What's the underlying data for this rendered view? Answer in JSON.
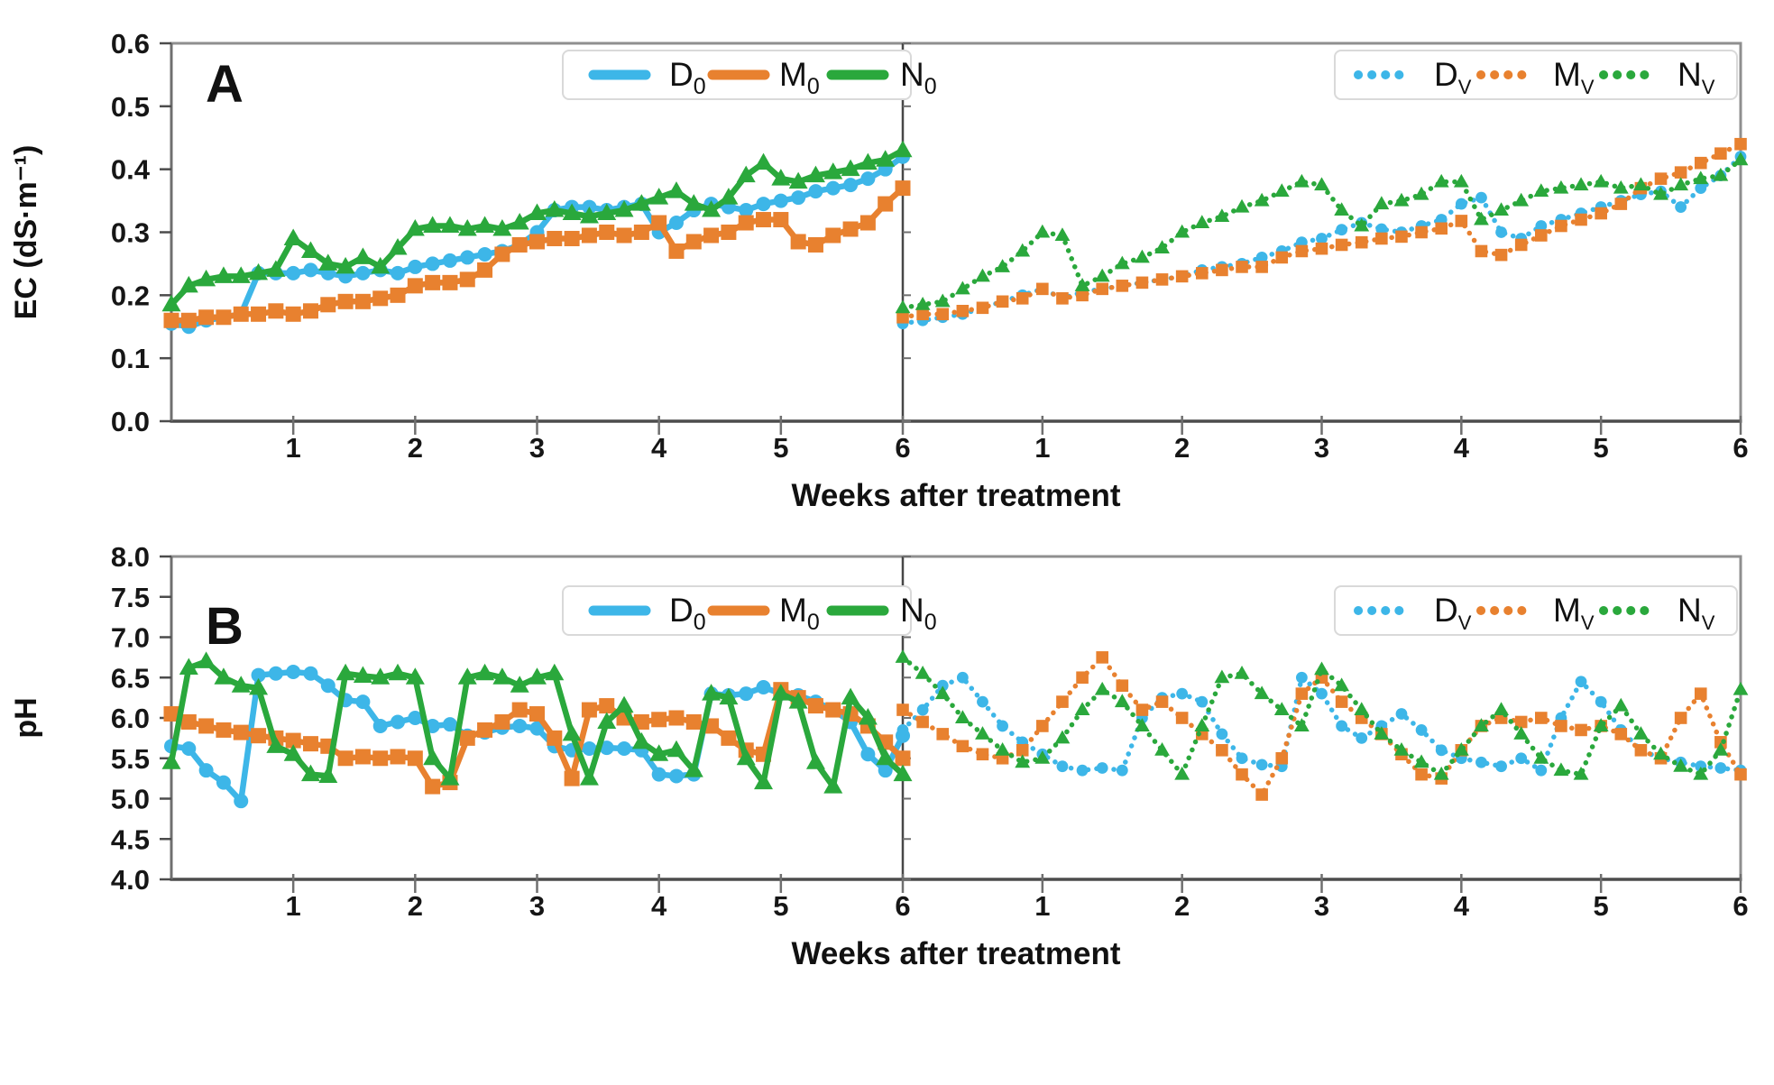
{
  "figure": {
    "background": "#ffffff",
    "xlabel": "Weeks after treatment",
    "colors": {
      "blue": "#3db6e8",
      "orange": "#e8812f",
      "green": "#2aa83c",
      "axis_dark": "#4c4c4c",
      "border_gray": "#8f8f8f",
      "text": "#161616",
      "legend_box": "#d9d9d9"
    }
  },
  "chart_data": [
    {
      "panel": "A",
      "type": "line",
      "ylabel": "EC (dS·m⁻¹)",
      "xlabel": "Weeks after treatment",
      "ylim": [
        0.0,
        0.6
      ],
      "ytick_labels": [
        "0.0",
        "0.1",
        "0.2",
        "0.3",
        "0.4",
        "0.5",
        "0.6"
      ],
      "x_range_weeks": [
        0,
        6
      ],
      "xtick_labels": [
        "1",
        "2",
        "3",
        "4",
        "5",
        "6"
      ],
      "grid": false,
      "legend_position": "top-right-inside",
      "subplots": [
        {
          "position": "left",
          "line_style": "solid",
          "series": [
            {
              "name": "D0",
              "label": "D",
              "label_sub": "0",
              "color": "#3db6e8",
              "marker": "circle",
              "values": [
                0.155,
                0.15,
                0.16,
                0.165,
                0.17,
                0.235,
                0.235,
                0.235,
                0.24,
                0.235,
                0.23,
                0.235,
                0.24,
                0.235,
                0.245,
                0.25,
                0.255,
                0.26,
                0.265,
                0.27,
                0.28,
                0.3,
                0.335,
                0.34,
                0.34,
                0.335,
                0.34,
                0.345,
                0.3,
                0.315,
                0.335,
                0.345,
                0.34,
                0.335,
                0.345,
                0.35,
                0.355,
                0.365,
                0.37,
                0.375,
                0.385,
                0.4,
                0.42
              ]
            },
            {
              "name": "M0",
              "label": "M",
              "label_sub": "0",
              "color": "#e8812f",
              "marker": "square",
              "values": [
                0.16,
                0.16,
                0.165,
                0.165,
                0.17,
                0.17,
                0.175,
                0.17,
                0.175,
                0.185,
                0.19,
                0.19,
                0.195,
                0.2,
                0.215,
                0.22,
                0.22,
                0.225,
                0.24,
                0.265,
                0.28,
                0.285,
                0.29,
                0.29,
                0.295,
                0.3,
                0.295,
                0.3,
                0.315,
                0.27,
                0.285,
                0.295,
                0.3,
                0.315,
                0.32,
                0.32,
                0.285,
                0.28,
                0.295,
                0.305,
                0.315,
                0.345,
                0.37
              ]
            },
            {
              "name": "N0",
              "label": "N",
              "label_sub": "0",
              "color": "#2aa83c",
              "marker": "triangle",
              "values": [
                0.185,
                0.215,
                0.225,
                0.23,
                0.23,
                0.235,
                0.24,
                0.29,
                0.27,
                0.25,
                0.245,
                0.26,
                0.245,
                0.275,
                0.305,
                0.31,
                0.31,
                0.305,
                0.31,
                0.305,
                0.315,
                0.33,
                0.335,
                0.33,
                0.325,
                0.33,
                0.335,
                0.345,
                0.355,
                0.365,
                0.345,
                0.335,
                0.355,
                0.39,
                0.41,
                0.385,
                0.38,
                0.39,
                0.395,
                0.4,
                0.41,
                0.415,
                0.43
              ]
            }
          ]
        },
        {
          "position": "right",
          "line_style": "dotted",
          "series": [
            {
              "name": "Dv",
              "label": "D",
              "label_sub": "V",
              "color": "#3db6e8",
              "marker": "circle",
              "values": [
                0.155,
                0.16,
                0.165,
                0.17,
                0.18,
                0.19,
                0.2,
                0.21,
                0.195,
                0.205,
                0.21,
                0.215,
                0.22,
                0.225,
                0.23,
                0.24,
                0.245,
                0.25,
                0.26,
                0.27,
                0.284,
                0.29,
                0.304,
                0.315,
                0.305,
                0.3,
                0.31,
                0.32,
                0.345,
                0.355,
                0.3,
                0.29,
                0.31,
                0.32,
                0.33,
                0.34,
                0.35,
                0.36,
                0.365,
                0.34,
                0.37,
                0.39,
                0.42
              ]
            },
            {
              "name": "Mv",
              "label": "M",
              "label_sub": "V",
              "color": "#e8812f",
              "marker": "square",
              "values": [
                0.165,
                0.17,
                0.17,
                0.175,
                0.18,
                0.19,
                0.195,
                0.21,
                0.195,
                0.2,
                0.21,
                0.215,
                0.22,
                0.225,
                0.23,
                0.235,
                0.24,
                0.245,
                0.245,
                0.26,
                0.27,
                0.274,
                0.28,
                0.284,
                0.29,
                0.293,
                0.3,
                0.306,
                0.318,
                0.27,
                0.264,
                0.28,
                0.295,
                0.31,
                0.32,
                0.33,
                0.345,
                0.37,
                0.385,
                0.395,
                0.41,
                0.425,
                0.44
              ]
            },
            {
              "name": "Nv",
              "label": "N",
              "label_sub": "V",
              "color": "#2aa83c",
              "marker": "triangle",
              "values": [
                0.18,
                0.185,
                0.19,
                0.21,
                0.23,
                0.245,
                0.27,
                0.3,
                0.295,
                0.215,
                0.23,
                0.25,
                0.26,
                0.275,
                0.3,
                0.315,
                0.325,
                0.34,
                0.35,
                0.365,
                0.38,
                0.375,
                0.335,
                0.31,
                0.345,
                0.35,
                0.36,
                0.38,
                0.38,
                0.32,
                0.335,
                0.35,
                0.365,
                0.37,
                0.375,
                0.38,
                0.37,
                0.375,
                0.36,
                0.375,
                0.385,
                0.39,
                0.415
              ]
            }
          ]
        }
      ]
    },
    {
      "panel": "B",
      "type": "line",
      "ylabel": "pH",
      "xlabel": "Weeks after treatment",
      "ylim": [
        4.0,
        8.0
      ],
      "ytick_labels": [
        "4.0",
        "4.5",
        "5.0",
        "5.5",
        "6.0",
        "6.5",
        "7.0",
        "7.5",
        "8.0"
      ],
      "x_range_weeks": [
        0,
        6
      ],
      "xtick_labels": [
        "1",
        "2",
        "3",
        "4",
        "5",
        "6"
      ],
      "grid": false,
      "legend_position": "top-right-inside",
      "subplots": [
        {
          "position": "left",
          "line_style": "solid",
          "series": [
            {
              "name": "D0",
              "label": "D",
              "label_sub": "0",
              "color": "#3db6e8",
              "marker": "circle",
              "values": [
                5.65,
                5.62,
                5.35,
                5.2,
                4.97,
                6.53,
                6.55,
                6.57,
                6.55,
                6.4,
                6.22,
                6.2,
                5.9,
                5.95,
                6.0,
                5.9,
                5.92,
                5.78,
                5.82,
                5.88,
                5.9,
                5.87,
                5.65,
                5.6,
                5.62,
                5.63,
                5.62,
                5.6,
                5.3,
                5.28,
                5.3,
                6.3,
                6.28,
                6.3,
                6.38,
                6.3,
                6.28,
                6.2,
                6.1,
                5.95,
                5.55,
                5.35,
                5.78
              ]
            },
            {
              "name": "M0",
              "label": "M",
              "label_sub": "0",
              "color": "#e8812f",
              "marker": "square",
              "values": [
                6.05,
                5.95,
                5.9,
                5.85,
                5.82,
                5.78,
                5.75,
                5.72,
                5.68,
                5.65,
                5.5,
                5.52,
                5.5,
                5.52,
                5.5,
                5.15,
                5.2,
                5.75,
                5.85,
                5.95,
                6.1,
                6.05,
                5.75,
                5.25,
                6.1,
                6.15,
                6.0,
                5.95,
                5.98,
                6.0,
                5.95,
                5.9,
                5.75,
                5.6,
                5.55,
                6.35,
                6.25,
                6.15,
                6.1,
                6.05,
                5.9,
                5.7,
                5.5
              ]
            },
            {
              "name": "N0",
              "label": "N",
              "label_sub": "0",
              "color": "#2aa83c",
              "marker": "triangle",
              "values": [
                5.45,
                6.62,
                6.7,
                6.5,
                6.4,
                6.37,
                5.65,
                5.55,
                5.3,
                5.28,
                6.55,
                6.52,
                6.5,
                6.55,
                6.5,
                5.5,
                5.25,
                6.5,
                6.55,
                6.5,
                6.4,
                6.5,
                6.55,
                5.8,
                5.25,
                5.95,
                6.15,
                5.7,
                5.55,
                5.6,
                5.35,
                6.3,
                6.25,
                5.5,
                5.2,
                6.3,
                6.2,
                5.45,
                5.15,
                6.25,
                6.0,
                5.5,
                5.3
              ]
            }
          ]
        },
        {
          "position": "right",
          "line_style": "dotted",
          "series": [
            {
              "name": "Dv",
              "label": "D",
              "label_sub": "V",
              "color": "#3db6e8",
              "marker": "circle",
              "values": [
                5.85,
                6.1,
                6.4,
                6.5,
                6.2,
                5.9,
                5.7,
                5.55,
                5.4,
                5.35,
                5.38,
                5.35,
                6.0,
                6.25,
                6.3,
                6.2,
                5.8,
                5.5,
                5.42,
                5.4,
                6.5,
                6.3,
                5.9,
                5.75,
                5.9,
                6.05,
                5.85,
                5.6,
                5.5,
                5.45,
                5.4,
                5.5,
                5.35,
                6.0,
                6.45,
                6.2,
                5.85,
                5.6,
                5.5,
                5.45,
                5.4,
                5.38,
                5.35
              ]
            },
            {
              "name": "Mv",
              "label": "M",
              "label_sub": "V",
              "color": "#e8812f",
              "marker": "square",
              "values": [
                6.1,
                5.95,
                5.8,
                5.65,
                5.55,
                5.5,
                5.6,
                5.9,
                6.2,
                6.5,
                6.75,
                6.4,
                6.1,
                6.2,
                6.0,
                5.8,
                5.6,
                5.3,
                5.05,
                5.5,
                6.3,
                6.5,
                6.2,
                6.0,
                5.8,
                5.55,
                5.3,
                5.25,
                5.6,
                5.9,
                6.0,
                5.95,
                6.0,
                5.9,
                5.85,
                5.9,
                5.8,
                5.6,
                5.5,
                6.0,
                6.3,
                5.7,
                5.3
              ]
            },
            {
              "name": "Nv",
              "label": "N",
              "label_sub": "V",
              "color": "#2aa83c",
              "marker": "triangle",
              "values": [
                6.75,
                6.55,
                6.3,
                6.0,
                5.8,
                5.6,
                5.45,
                5.5,
                5.75,
                6.1,
                6.35,
                6.2,
                5.9,
                5.6,
                5.3,
                5.9,
                6.5,
                6.55,
                6.3,
                6.1,
                5.9,
                6.6,
                6.4,
                6.1,
                5.8,
                5.6,
                5.45,
                5.3,
                5.6,
                5.9,
                6.1,
                5.8,
                5.5,
                5.35,
                5.3,
                5.9,
                6.15,
                5.8,
                5.55,
                5.4,
                5.3,
                5.6,
                6.35
              ]
            }
          ]
        }
      ]
    }
  ]
}
